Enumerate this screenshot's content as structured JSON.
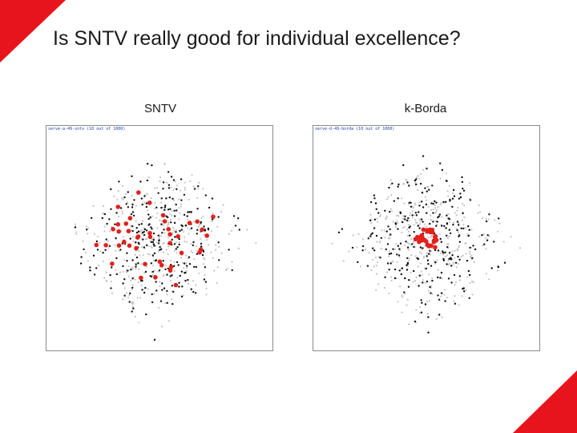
{
  "slide": {
    "title": "Is SNTV really good for individual excellence?",
    "accent_color": "#e8141c"
  },
  "panels": [
    {
      "label": "SNTV",
      "caption": "serve-a-49-sntv (10 out of 1000)",
      "winner_color": "#e3201b"
    },
    {
      "label": "k-Borda",
      "caption": "serve-d-49-borda (10 out of 1000)",
      "winner_color": "#e3201b"
    }
  ]
}
